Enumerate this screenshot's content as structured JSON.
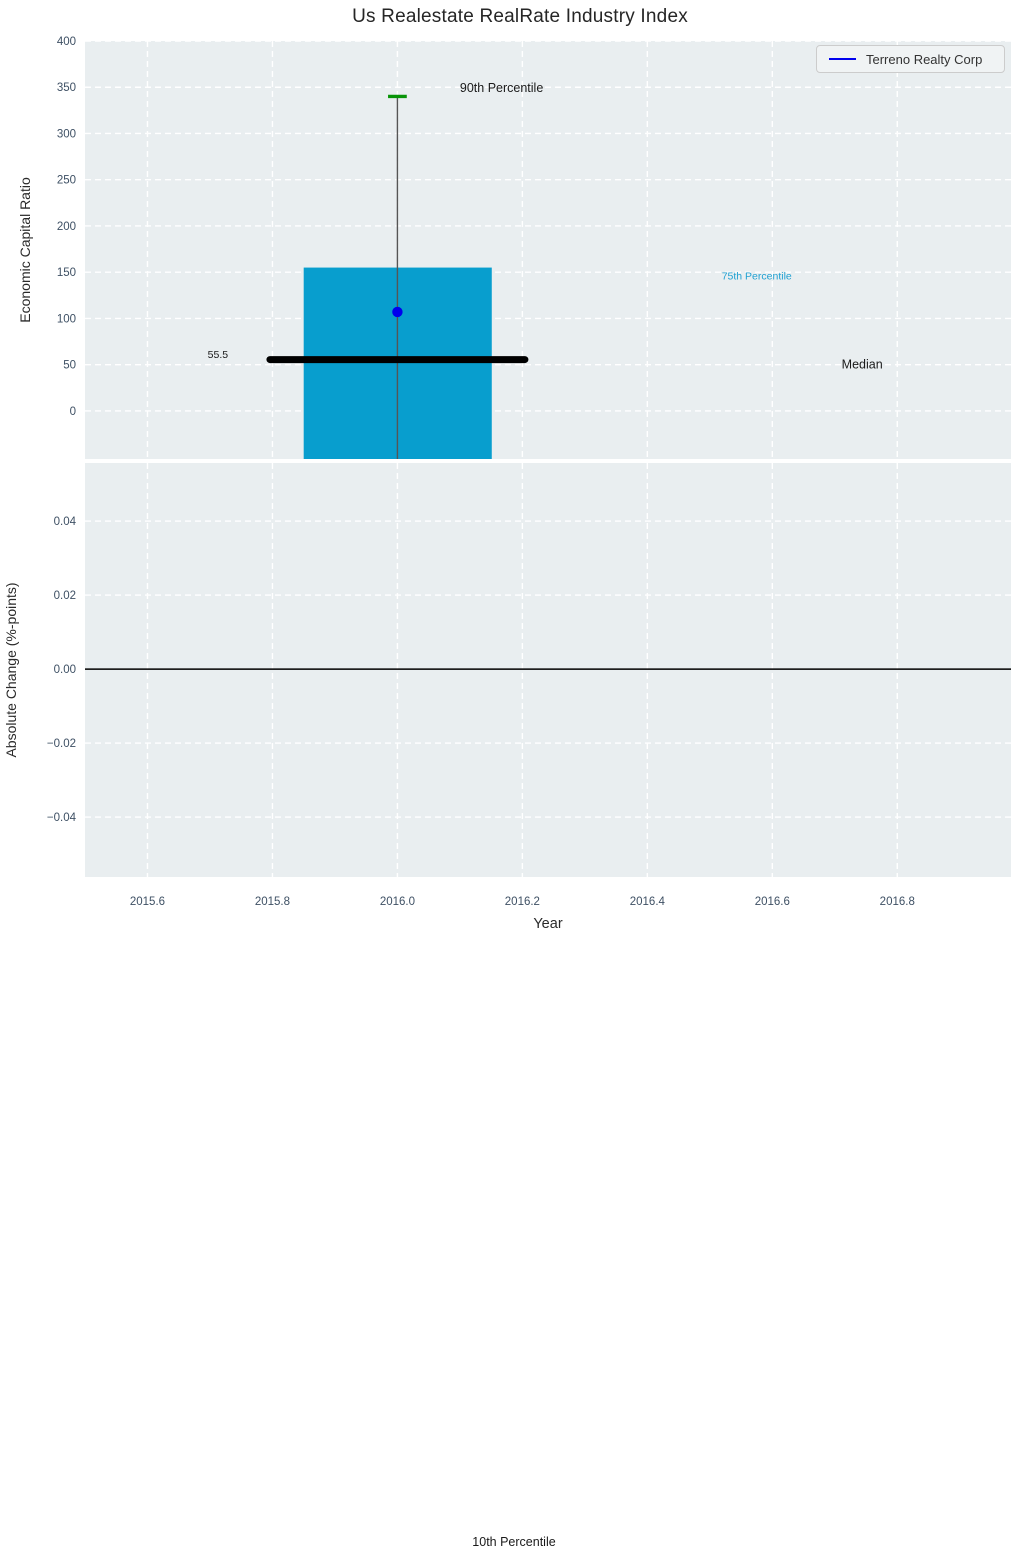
{
  "title": "Us Realestate RealRate Industry Index",
  "legend": {
    "label": "Terreno Realty Corp"
  },
  "colors": {
    "plot_bg": "#e9eef0",
    "grid": "#ffffff",
    "tick_label": "#3e5064",
    "text": "#2a2a2a",
    "box_fill": "#089ece",
    "whisker": "#555555",
    "cap_green": "#089408",
    "median_black": "#000000",
    "dot_blue": "#0000ee",
    "accent_cyan": "#21a1d2",
    "zero_line": "#000000"
  },
  "chart_data": [
    {
      "type": "boxplot",
      "subplot": "top",
      "title": "Us Realestate RealRate Industry Index",
      "ylabel": "Economic Capital Ratio",
      "ylim": [
        -52,
        400
      ],
      "yticks": [
        0,
        50,
        100,
        150,
        200,
        250,
        300,
        350,
        400
      ],
      "ytick_labels": [
        "0",
        "50",
        "100",
        "150",
        "200",
        "250",
        "300",
        "350",
        "400"
      ],
      "xlim": [
        2015.5,
        2016.982
      ],
      "grid": true,
      "legend_position": "upper right",
      "series": [
        {
          "name": "Terreno Realty Corp",
          "x": 2016.0,
          "p90": 340,
          "p75": 155,
          "median": 55.5,
          "p25": null,
          "box_bottom_clipped_at_axis": true,
          "value_dot": 107,
          "box_x_span": [
            2015.85,
            2016.151
          ],
          "median_x_span": [
            2015.796,
            2016.204
          ],
          "cap_half_width_years": 0.015
        }
      ],
      "annotations": [
        {
          "text": "90th Percentile",
          "x": 2016.1,
          "y": 345,
          "anchor": "start",
          "color": "#1a1a1a",
          "size": 12.5
        },
        {
          "text": "75th Percentile",
          "x": 2016.519,
          "y": 142,
          "anchor": "start",
          "color": "#21a1d2",
          "size": 10.5
        },
        {
          "text": "Median",
          "x": 2016.711,
          "y": 46,
          "anchor": "start",
          "color": "#1a1a1a",
          "size": 12.5
        },
        {
          "text": "55.5",
          "x": 2015.729,
          "y": 57,
          "anchor": "end",
          "color": "#1a1a1a",
          "size": 10.5
        }
      ]
    },
    {
      "type": "line",
      "subplot": "bottom",
      "ylabel": "Absolute Change (%-points)",
      "xlabel": "Year",
      "ylim": [
        -0.0562,
        0.0557
      ],
      "yticks": [
        0.04,
        0.02,
        0.0,
        -0.02,
        -0.04
      ],
      "ytick_labels": [
        "0.04",
        "0.02",
        "0.00",
        "−0.02",
        "−0.04"
      ],
      "xticks": [
        2015.6,
        2015.8,
        2016.0,
        2016.2,
        2016.4,
        2016.6,
        2016.8
      ],
      "xtick_labels": [
        "2015.6",
        "2015.8",
        "2016.0",
        "2016.2",
        "2016.4",
        "2016.6",
        "2016.8"
      ],
      "zero_line": 0.0,
      "series": [],
      "grid": true
    }
  ],
  "outside_annotations": [
    {
      "text": "10th Percentile"
    }
  ]
}
